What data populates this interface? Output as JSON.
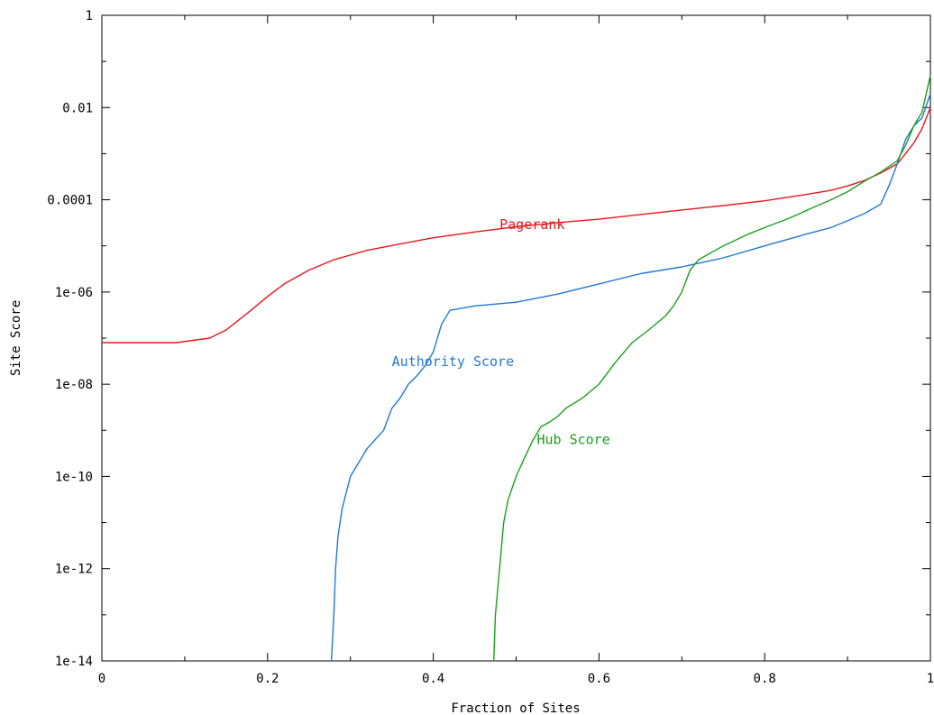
{
  "chart_data": {
    "type": "line",
    "title": "",
    "xlabel": "Fraction of Sites",
    "ylabel": "Site Score",
    "xlim": [
      0,
      1
    ],
    "ylim": [
      1e-14,
      1
    ],
    "yscale": "log",
    "grid": false,
    "x_ticks": [
      {
        "value": 0,
        "label": "0"
      },
      {
        "value": 0.2,
        "label": "0.2"
      },
      {
        "value": 0.4,
        "label": "0.4"
      },
      {
        "value": 0.6,
        "label": "0.6"
      },
      {
        "value": 0.8,
        "label": "0.8"
      },
      {
        "value": 1,
        "label": "1"
      }
    ],
    "y_ticks": [
      {
        "value": 1,
        "label": "1"
      },
      {
        "value": 0.01,
        "label": "0.01"
      },
      {
        "value": 0.0001,
        "label": "0.0001"
      },
      {
        "value": 1e-06,
        "label": "1e-06"
      },
      {
        "value": 1e-08,
        "label": "1e-08"
      },
      {
        "value": 1e-10,
        "label": "1e-10"
      },
      {
        "value": 1e-12,
        "label": "1e-12"
      },
      {
        "value": 1e-14,
        "label": "1e-14"
      }
    ],
    "series": [
      {
        "name": "Pagerank",
        "color": "#e8171f",
        "label_at": {
          "x": 0.48,
          "y": 2.3e-05
        },
        "x": [
          0,
          0.05,
          0.09,
          0.13,
          0.15,
          0.18,
          0.2,
          0.22,
          0.25,
          0.28,
          0.32,
          0.36,
          0.4,
          0.45,
          0.5,
          0.55,
          0.6,
          0.65,
          0.7,
          0.75,
          0.8,
          0.85,
          0.88,
          0.9,
          0.92,
          0.94,
          0.96,
          0.97,
          0.98,
          0.99,
          1.0
        ],
        "y": [
          8e-08,
          8e-08,
          8e-08,
          1e-07,
          1.5e-07,
          4e-07,
          8e-07,
          1.5e-06,
          3e-06,
          5e-06,
          8e-06,
          1.1e-05,
          1.5e-05,
          2e-05,
          2.6e-05,
          3.2e-05,
          3.8e-05,
          4.8e-05,
          6e-05,
          7.5e-05,
          9.5e-05,
          0.00013,
          0.00016,
          0.0002,
          0.00026,
          0.00038,
          0.0006,
          0.001,
          0.0017,
          0.0035,
          0.01
        ]
      },
      {
        "name": "Authority Score",
        "color": "#2278d4",
        "label_at": {
          "x": 0.35,
          "y": 2.5e-08
        },
        "x": [
          0.277,
          0.28,
          0.282,
          0.285,
          0.29,
          0.3,
          0.31,
          0.32,
          0.34,
          0.35,
          0.36,
          0.37,
          0.38,
          0.39,
          0.4,
          0.41,
          0.42,
          0.45,
          0.5,
          0.55,
          0.6,
          0.65,
          0.7,
          0.75,
          0.8,
          0.85,
          0.88,
          0.9,
          0.92,
          0.94,
          0.95,
          0.96,
          0.97,
          0.98,
          0.99,
          1.0
        ],
        "y": [
          1e-14,
          1e-13,
          1e-12,
          5e-12,
          2e-11,
          1e-10,
          2e-10,
          4e-10,
          1e-09,
          3e-09,
          5e-09,
          1e-08,
          1.5e-08,
          2.5e-08,
          5e-08,
          2e-07,
          4e-07,
          5e-07,
          6e-07,
          9e-07,
          1.5e-06,
          2.5e-06,
          3.5e-06,
          5.5e-06,
          1e-05,
          1.8e-05,
          2.5e-05,
          3.5e-05,
          5e-05,
          8e-05,
          0.0002,
          0.0006,
          0.002,
          0.004,
          0.006,
          0.02
        ]
      },
      {
        "name": "Hub Score",
        "color": "#1aa11a",
        "label_at": {
          "x": 0.525,
          "y": 5e-10
        },
        "x": [
          0.473,
          0.475,
          0.48,
          0.485,
          0.49,
          0.5,
          0.51,
          0.52,
          0.53,
          0.54,
          0.55,
          0.56,
          0.58,
          0.6,
          0.62,
          0.64,
          0.66,
          0.68,
          0.69,
          0.7,
          0.71,
          0.72,
          0.75,
          0.78,
          0.8,
          0.83,
          0.86,
          0.88,
          0.9,
          0.92,
          0.94,
          0.96,
          0.97,
          0.98,
          0.99,
          1.0
        ],
        "y": [
          1e-14,
          1e-13,
          1e-12,
          1e-11,
          3e-11,
          1e-10,
          2.5e-10,
          6e-10,
          1.2e-09,
          1.5e-09,
          2e-09,
          3e-09,
          5e-09,
          1e-08,
          3e-08,
          8e-08,
          1.5e-07,
          3e-07,
          5e-07,
          1e-06,
          3e-06,
          5e-06,
          1e-05,
          1.8e-05,
          2.5e-05,
          4e-05,
          7e-05,
          0.0001,
          0.00015,
          0.00025,
          0.0004,
          0.0007,
          0.0015,
          0.004,
          0.008,
          0.05
        ]
      }
    ]
  }
}
